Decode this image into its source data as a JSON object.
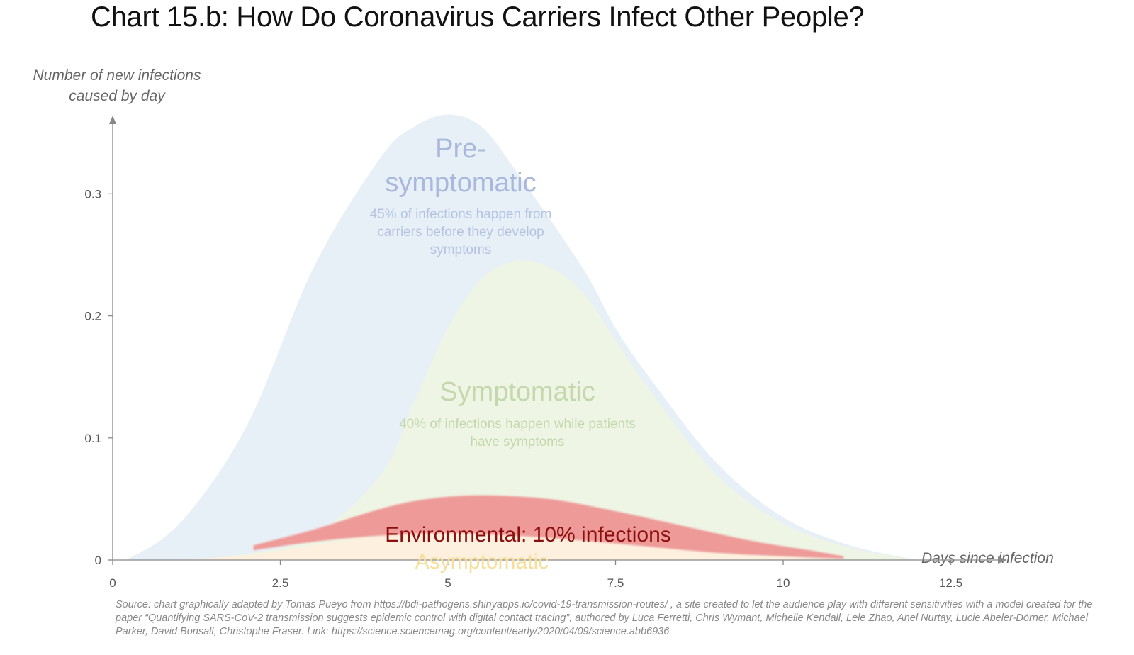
{
  "title": "Chart 15.b: How Do Coronavirus Carriers Infect Other People?",
  "source": "Source: chart graphically adapted by Tomas Pueyo from https://bdi-pathogens.shinyapps.io/covid-19-transmission-routes/ , a site created to let the audience play with different sensitivities with a model created for the paper “Quantifying SARS-CoV-2 transmission suggests epidemic control with digital contact tracing”, authored by Luca Ferretti, Chris Wymant, Michelle Kendall, Lele Zhao, Anel Nurtay, Lucie Abeler-Dörner, Michael Parker, David Bonsall, Christophe Fraser. Link: https://science.sciencemag.org/content/early/2020/04/09/science.abb6936",
  "annotations": {
    "pre_title": "Pre-\nsymptomatic",
    "pre_desc": "45% of infections happen from carriers before they develop symptoms",
    "sym_title": "Symptomatic",
    "sym_desc": "40% of infections happen while patients have symptoms",
    "env_label": "Environmental: 10% infections",
    "asym_label": "Asymptomatic"
  },
  "colors": {
    "pre_symptomatic": "#e8f0f7",
    "symptomatic": "#eef5e4",
    "environmental": "#ee9a98",
    "asymptomatic": "#fdf0df",
    "axis": "#888888"
  },
  "chart_data": {
    "type": "area",
    "xlabel": "Days since infection",
    "ylabel": "Number of new infections caused by day",
    "xlim": [
      0,
      13.4
    ],
    "ylim": [
      0,
      0.36
    ],
    "xticks": [
      0,
      2.5,
      5,
      7.5,
      10,
      12.5
    ],
    "xtick_labels": [
      "0",
      "2.5",
      "5",
      "7.5",
      "10",
      "12.5"
    ],
    "yticks": [
      0,
      0.1,
      0.2,
      0.3
    ],
    "ytick_labels": [
      "0",
      "0.1",
      "0.2",
      "0.3"
    ],
    "grid": false,
    "series": [
      {
        "name": "Pre-symptomatic",
        "points": [
          [
            0.2,
            0
          ],
          [
            1,
            0.03
          ],
          [
            2,
            0.11
          ],
          [
            3,
            0.24
          ],
          [
            4,
            0.33
          ],
          [
            4.5,
            0.355
          ],
          [
            5,
            0.365
          ],
          [
            5.5,
            0.355
          ],
          [
            6,
            0.32
          ],
          [
            7,
            0.24
          ],
          [
            7.5,
            0.19
          ],
          [
            8,
            0.15
          ],
          [
            9,
            0.08
          ],
          [
            10,
            0.035
          ],
          [
            11,
            0.012
          ],
          [
            12,
            0
          ]
        ]
      },
      {
        "name": "Symptomatic",
        "points": [
          [
            1,
            0
          ],
          [
            2,
            0.005
          ],
          [
            3,
            0.02
          ],
          [
            4,
            0.07
          ],
          [
            4.5,
            0.13
          ],
          [
            5,
            0.19
          ],
          [
            5.5,
            0.23
          ],
          [
            6,
            0.245
          ],
          [
            6.5,
            0.24
          ],
          [
            7,
            0.22
          ],
          [
            7.5,
            0.18
          ],
          [
            8,
            0.14
          ],
          [
            9,
            0.07
          ],
          [
            10,
            0.03
          ],
          [
            11,
            0.01
          ],
          [
            12,
            0
          ]
        ]
      },
      {
        "name": "Environmental",
        "points_upper": [
          [
            2.1,
            0.012
          ],
          [
            3,
            0.025
          ],
          [
            4,
            0.042
          ],
          [
            4.7,
            0.05
          ],
          [
            5.5,
            0.053
          ],
          [
            6.5,
            0.05
          ],
          [
            7.5,
            0.04
          ],
          [
            8.5,
            0.028
          ],
          [
            9.5,
            0.016
          ],
          [
            10.5,
            0.007
          ],
          [
            10.9,
            0.003
          ]
        ],
        "points_lower": [
          [
            10.9,
            0.001
          ],
          [
            10,
            0.003
          ],
          [
            9,
            0.006
          ],
          [
            8,
            0.011
          ],
          [
            7,
            0.016
          ],
          [
            6,
            0.02
          ],
          [
            5,
            0.022
          ],
          [
            4,
            0.02
          ],
          [
            3,
            0.015
          ],
          [
            2.1,
            0.008
          ]
        ]
      },
      {
        "name": "Asymptomatic",
        "points": [
          [
            1,
            0
          ],
          [
            2,
            0.004
          ],
          [
            3,
            0.012
          ],
          [
            4,
            0.02
          ],
          [
            5,
            0.022
          ],
          [
            6,
            0.02
          ],
          [
            7,
            0.016
          ],
          [
            8,
            0.011
          ],
          [
            9,
            0.006
          ],
          [
            10,
            0.003
          ],
          [
            11,
            0
          ]
        ]
      }
    ]
  }
}
